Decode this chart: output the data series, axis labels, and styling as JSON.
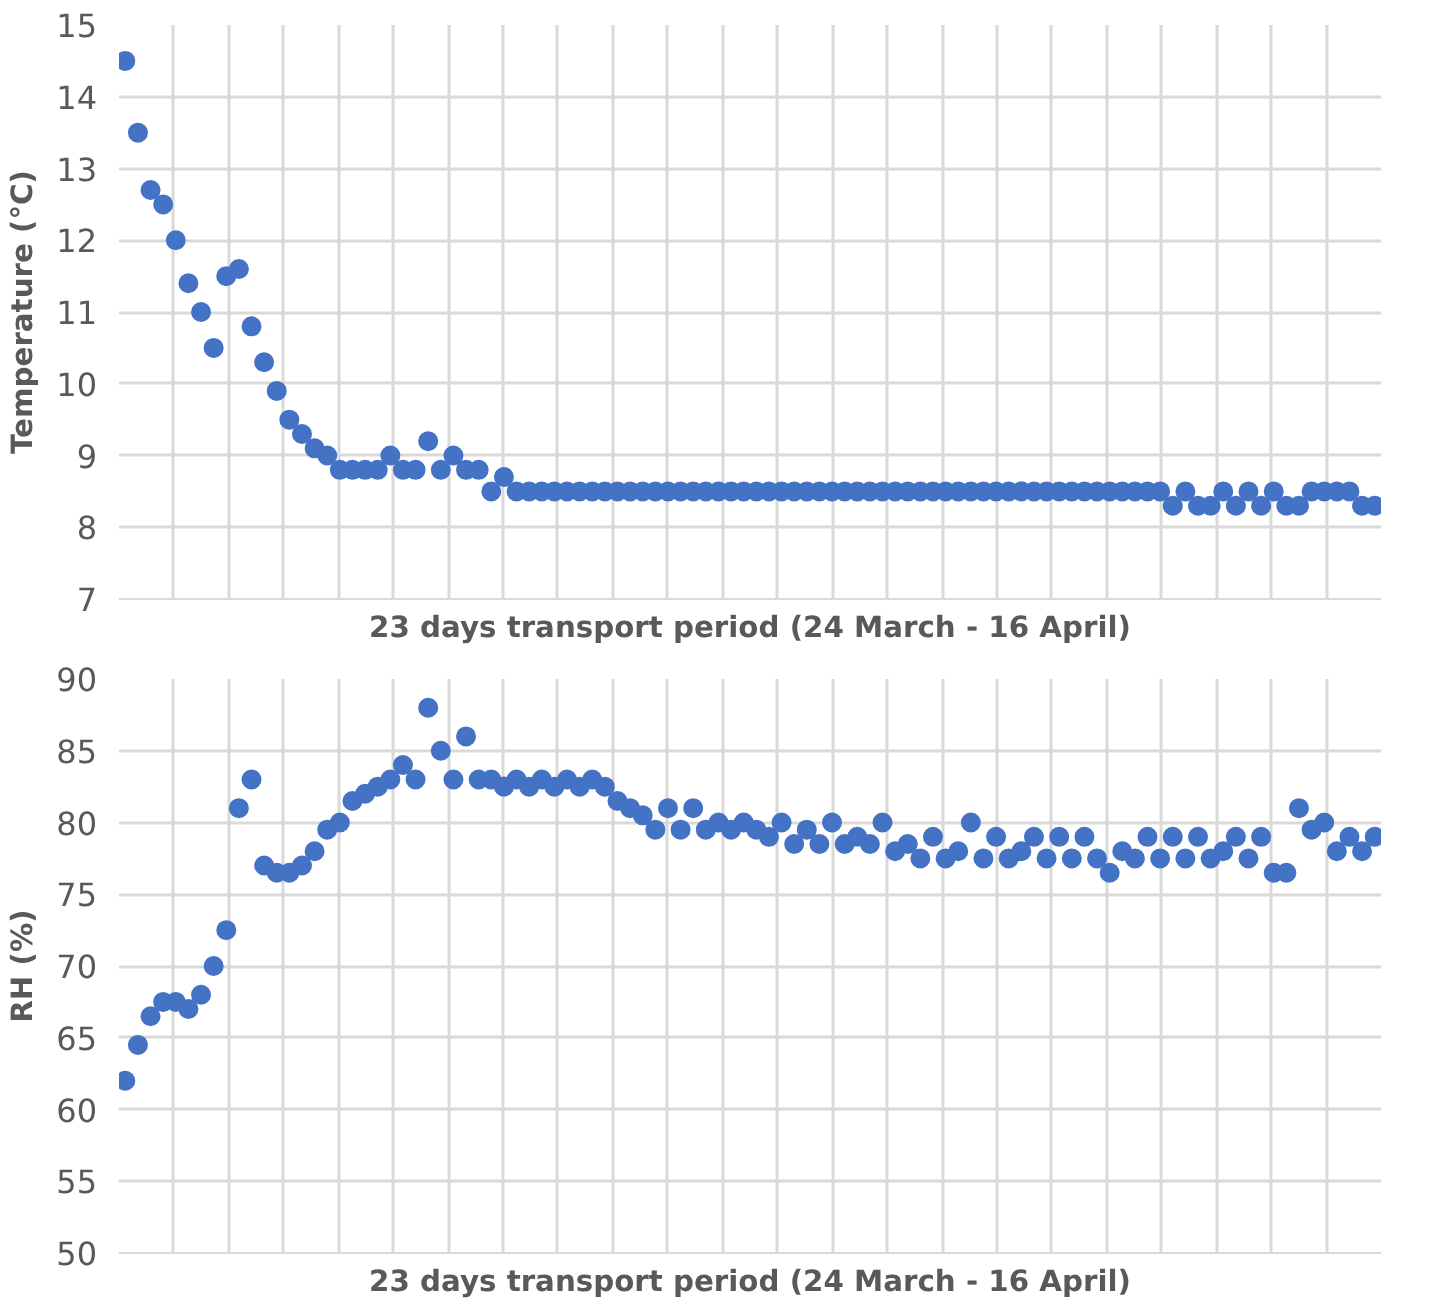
{
  "chart_data": [
    {
      "type": "scatter",
      "ylabel": "Temperature (°C)",
      "xlabel": "23 days transport period (24 March - 16 April)",
      "ylim": [
        7,
        15
      ],
      "yticks": [
        7,
        8,
        9,
        10,
        11,
        12,
        13,
        14,
        15
      ],
      "grid": true,
      "marker": "circle",
      "tick_labels": "y",
      "categories": [
        null,
        null,
        null,
        null,
        null,
        null,
        null,
        null,
        null,
        null,
        null,
        null,
        null,
        null,
        null,
        null,
        null,
        null,
        null,
        null,
        null,
        null,
        null,
        null,
        null,
        null,
        null,
        null,
        null,
        null,
        null,
        null,
        null,
        null,
        null,
        null,
        null,
        null,
        null,
        null,
        null,
        null,
        null,
        null,
        null,
        null,
        null,
        null,
        null,
        null,
        null,
        null,
        null,
        null,
        null,
        null,
        null,
        null,
        null,
        null,
        null,
        null,
        null,
        null,
        null,
        null,
        null,
        null,
        null,
        null,
        null,
        null,
        null,
        null,
        null,
        null,
        null,
        null,
        null,
        null,
        null,
        null,
        null,
        null,
        null,
        null,
        null,
        null,
        null,
        null,
        null,
        null,
        null,
        null,
        null,
        null,
        null,
        null,
        null,
        null
      ],
      "series": [
        {
          "color": "#4472c4",
          "values": [
            14.5,
            13.5,
            12.7,
            12.5,
            12.0,
            11.4,
            11.0,
            10.5,
            11.5,
            11.6,
            10.8,
            10.3,
            9.9,
            9.5,
            9.3,
            9.1,
            9.0,
            8.8,
            8.8,
            8.8,
            8.8,
            9.0,
            8.8,
            8.8,
            9.2,
            8.8,
            9.0,
            8.8,
            8.8,
            8.5,
            8.7,
            8.5,
            8.5,
            8.5,
            8.5,
            8.5,
            8.5,
            8.5,
            8.5,
            8.5,
            8.5,
            8.5,
            8.5,
            8.5,
            8.5,
            8.5,
            8.5,
            8.5,
            8.5,
            8.5,
            8.5,
            8.5,
            8.5,
            8.5,
            8.5,
            8.5,
            8.5,
            8.5,
            8.5,
            8.5,
            8.5,
            8.5,
            8.5,
            8.5,
            8.5,
            8.5,
            8.5,
            8.5,
            8.5,
            8.5,
            8.5,
            8.5,
            8.5,
            8.5,
            8.5,
            8.5,
            8.5,
            8.5,
            8.5,
            8.5,
            8.5,
            8.5,
            8.5,
            8.3,
            8.5,
            8.3,
            8.3,
            8.5,
            8.3,
            8.5,
            8.3,
            8.5,
            8.3,
            8.3,
            8.5,
            8.5,
            8.5,
            8.5,
            8.3,
            8.3
          ]
        }
      ]
    },
    {
      "type": "scatter",
      "ylabel": "RH (%)",
      "xlabel": "23 days transport period (24 March - 16 April)",
      "ylim": [
        50,
        90
      ],
      "yticks": [
        50,
        55,
        60,
        65,
        70,
        75,
        80,
        85,
        90
      ],
      "grid": true,
      "marker": "circle",
      "tick_labels": "y",
      "categories": [
        null,
        null,
        null,
        null,
        null,
        null,
        null,
        null,
        null,
        null,
        null,
        null,
        null,
        null,
        null,
        null,
        null,
        null,
        null,
        null,
        null,
        null,
        null,
        null,
        null,
        null,
        null,
        null,
        null,
        null,
        null,
        null,
        null,
        null,
        null,
        null,
        null,
        null,
        null,
        null,
        null,
        null,
        null,
        null,
        null,
        null,
        null,
        null,
        null,
        null,
        null,
        null,
        null,
        null,
        null,
        null,
        null,
        null,
        null,
        null,
        null,
        null,
        null,
        null,
        null,
        null,
        null,
        null,
        null,
        null,
        null,
        null,
        null,
        null,
        null,
        null,
        null,
        null,
        null,
        null,
        null,
        null,
        null,
        null,
        null,
        null,
        null,
        null,
        null,
        null,
        null,
        null,
        null,
        null,
        null,
        null,
        null,
        null,
        null,
        null
      ],
      "series": [
        {
          "color": "#4472c4",
          "values": [
            62,
            64.5,
            66.5,
            67.5,
            67.5,
            67,
            68,
            70,
            72.5,
            81,
            83,
            77,
            76.5,
            76.5,
            77,
            78,
            79.5,
            80,
            81.5,
            82,
            82.5,
            83,
            84,
            83,
            88,
            85,
            83,
            86,
            83,
            83,
            82.5,
            83,
            82.5,
            83,
            82.5,
            83,
            82.5,
            83,
            82.5,
            81.5,
            81,
            80.5,
            79.5,
            81,
            79.5,
            81,
            79.5,
            80,
            79.5,
            80,
            79.5,
            79,
            80,
            78.5,
            79.5,
            78.5,
            80,
            78.5,
            79,
            78.5,
            80,
            78,
            78.5,
            77.5,
            79,
            77.5,
            78,
            80,
            77.5,
            79,
            77.5,
            78,
            79,
            77.5,
            79,
            77.5,
            79,
            77.5,
            76.5,
            78,
            77.5,
            79,
            77.5,
            79,
            77.5,
            79,
            77.5,
            78,
            79,
            77.5,
            79,
            76.5,
            76.5,
            81,
            79.5,
            80,
            78,
            79,
            78,
            79
          ]
        }
      ]
    }
  ]
}
